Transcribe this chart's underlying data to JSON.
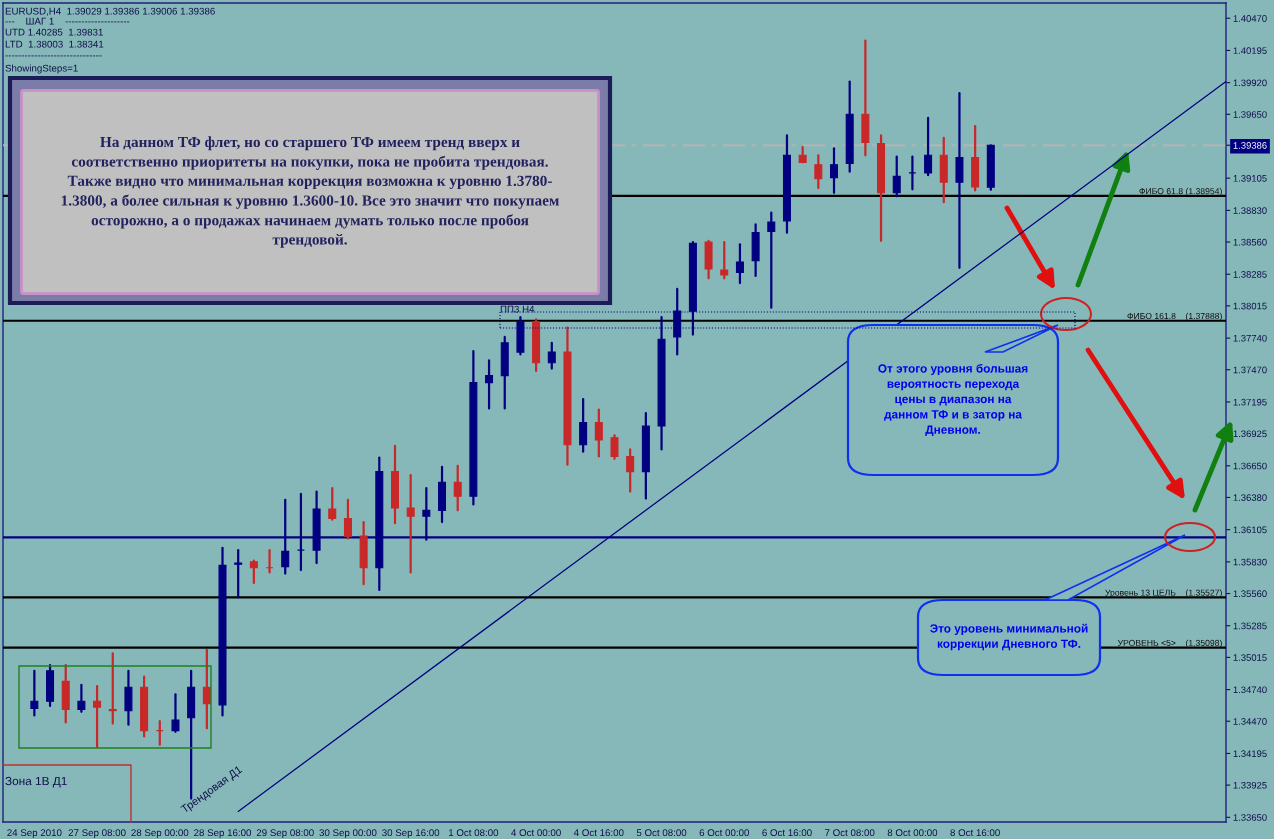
{
  "chart_data": {
    "type": "candlestick",
    "categories": [
      "24 Sep 2010",
      null,
      null,
      null,
      "27 Sep 08:00",
      null,
      null,
      null,
      "28 Sep 00:00",
      null,
      null,
      null,
      "28 Sep 16:00",
      null,
      null,
      null,
      "29 Sep 08:00",
      null,
      null,
      null,
      "30 Sep 00:00",
      null,
      null,
      null,
      "30 Sep 16:00",
      null,
      null,
      null,
      "1 Oct 08:00",
      null,
      null,
      null,
      "4 Oct 00:00",
      null,
      null,
      null,
      "4 Oct 16:00",
      null,
      null,
      null,
      "5 Oct 08:00",
      null,
      null,
      null,
      "6 Oct 00:00",
      null,
      null,
      null,
      "6 Oct 16:00",
      null,
      null,
      null,
      "7 Oct 08:00",
      null,
      null,
      null,
      "8 Oct 00:00",
      null,
      null,
      null,
      "8 Oct 16:00",
      null,
      null,
      null,
      null,
      null,
      null,
      null,
      null,
      null,
      null,
      null,
      null,
      null,
      null,
      null,
      null
    ],
    "ohlc": [
      [
        1.3458,
        1.349,
        1.3452,
        1.3464
      ],
      [
        1.3464,
        1.3495,
        1.346,
        1.349
      ],
      [
        1.3481,
        1.3495,
        1.3446,
        1.3457
      ],
      [
        1.3457,
        1.3478,
        1.3455,
        1.3464
      ],
      [
        1.3464,
        1.3477,
        1.3425,
        1.3459
      ],
      [
        1.3457,
        1.3505,
        1.3445,
        1.3456
      ],
      [
        1.3456,
        1.349,
        1.3444,
        1.3476
      ],
      [
        1.3476,
        1.3485,
        1.3434,
        1.3439
      ],
      [
        1.3439,
        1.3447,
        1.3427,
        1.3439
      ],
      [
        1.3439,
        1.347,
        1.3438,
        1.3448
      ],
      [
        1.345,
        1.349,
        1.3381,
        1.3476
      ],
      [
        1.3476,
        1.3508,
        1.3441,
        1.3462
      ],
      [
        1.3461,
        1.3595,
        1.3452,
        1.358
      ],
      [
        1.3581,
        1.3593,
        1.3553,
        1.3582
      ],
      [
        1.3583,
        1.3584,
        1.3565,
        1.3578
      ],
      [
        1.3578,
        1.3593,
        1.3574,
        1.3578
      ],
      [
        1.3579,
        1.3636,
        1.3573,
        1.3592
      ],
      [
        1.3593,
        1.3641,
        1.3576,
        1.3593
      ],
      [
        1.3593,
        1.3643,
        1.3582,
        1.3628
      ],
      [
        1.3628,
        1.3646,
        1.3619,
        1.362
      ],
      [
        1.362,
        1.3636,
        1.3603,
        1.3605
      ],
      [
        1.3605,
        1.3617,
        1.3564,
        1.3578
      ],
      [
        1.3578,
        1.3672,
        1.3559,
        1.366
      ],
      [
        1.366,
        1.3682,
        1.3616,
        1.3629
      ],
      [
        1.3629,
        1.3657,
        1.3574,
        1.3622
      ],
      [
        1.3622,
        1.3646,
        1.3602,
        1.3627
      ],
      [
        1.3627,
        1.3664,
        1.3617,
        1.3651
      ],
      [
        1.3651,
        1.3665,
        1.3627,
        1.3639
      ],
      [
        1.3639,
        1.3763,
        1.3632,
        1.3736
      ],
      [
        1.3736,
        1.3755,
        1.3714,
        1.3742
      ],
      [
        1.3742,
        1.3775,
        1.3714,
        1.377
      ],
      [
        1.3762,
        1.3792,
        1.376,
        1.3788
      ],
      [
        1.3788,
        1.379,
        1.3746,
        1.3753
      ],
      [
        1.3753,
        1.377,
        1.3748,
        1.3762
      ],
      [
        1.3762,
        1.3783,
        1.3666,
        1.3683
      ],
      [
        1.3683,
        1.3722,
        1.3677,
        1.3702
      ],
      [
        1.3702,
        1.3713,
        1.3673,
        1.3687
      ],
      [
        1.3689,
        1.3691,
        1.3671,
        1.3673
      ],
      [
        1.3673,
        1.3679,
        1.3643,
        1.366
      ],
      [
        1.366,
        1.371,
        1.3637,
        1.3699
      ],
      [
        1.3699,
        1.3792,
        1.3679,
        1.3773
      ],
      [
        1.3775,
        1.3816,
        1.376,
        1.3797
      ],
      [
        1.3797,
        1.3856,
        1.3777,
        1.3855
      ],
      [
        1.3856,
        1.3857,
        1.3825,
        1.3833
      ],
      [
        1.3832,
        1.3856,
        1.3825,
        1.3828
      ],
      [
        1.383,
        1.3854,
        1.3821,
        1.3839
      ],
      [
        1.384,
        1.3871,
        1.3827,
        1.3864
      ],
      [
        1.3865,
        1.3881,
        1.38,
        1.3873
      ],
      [
        1.3874,
        1.3947,
        1.3864,
        1.393
      ],
      [
        1.393,
        1.3937,
        1.3924,
        1.3924
      ],
      [
        1.3922,
        1.393,
        1.3902,
        1.391
      ],
      [
        1.3911,
        1.3936,
        1.3898,
        1.3922
      ],
      [
        1.3923,
        1.3993,
        1.3916,
        1.3965
      ],
      [
        1.3965,
        1.4028,
        1.393,
        1.3941
      ],
      [
        1.394,
        1.3947,
        1.3857,
        1.3898
      ],
      [
        1.3898,
        1.3929,
        1.3895,
        1.3912
      ],
      [
        1.3915,
        1.3929,
        1.3901,
        1.3915
      ],
      [
        1.3915,
        1.3962,
        1.3913,
        1.393
      ],
      [
        1.393,
        1.3945,
        1.389,
        1.3907
      ],
      [
        1.3907,
        1.3983,
        1.3834,
        1.3928
      ],
      [
        1.3928,
        1.3955,
        1.39,
        1.3903
      ],
      [
        1.39029,
        1.39386,
        1.39006,
        1.39386
      ],
      null,
      null,
      null,
      null,
      null,
      null,
      null,
      null,
      null,
      null,
      null,
      null,
      null,
      null,
      null
    ],
    "colors": [
      "#000080",
      "#000080",
      "#c82828",
      "#000080",
      "#c82828",
      "#c82828",
      "#000080",
      "#c82828",
      "#c82828",
      "#000080",
      "#000080",
      "#c82828",
      "#000080",
      "#000080",
      "#c82828",
      "#c82828",
      "#000080",
      "#000080",
      "#000080",
      "#c82828",
      "#c82828",
      "#c82828",
      "#000080",
      "#c82828",
      "#c82828",
      "#000080",
      "#000080",
      "#c82828",
      "#000080",
      "#000080",
      "#000080",
      "#000080",
      "#c82828",
      "#000080",
      "#c82828",
      "#000080",
      "#c82828",
      "#c82828",
      "#c82828",
      "#000080",
      "#000080",
      "#000080",
      "#000080",
      "#c82828",
      "#c82828",
      "#000080",
      "#000080",
      "#000080",
      "#000080",
      "#c82828",
      "#c82828",
      "#000080",
      "#000080",
      "#c82828",
      "#c82828",
      "#000080",
      "#000080",
      "#000080",
      "#c82828",
      "#000080",
      "#c82828",
      "#000080",
      null,
      null,
      null,
      null,
      null,
      null,
      null,
      null,
      null,
      null,
      null,
      null,
      null,
      null,
      null
    ],
    "series": [
      {
        "type": "line",
        "color": "#000080",
        "values": [
          null,
          null,
          null,
          null,
          null,
          null,
          null,
          null,
          null,
          null,
          null,
          null,
          null,
          1.337,
          null,
          null,
          null,
          null,
          null,
          null,
          null,
          null,
          null,
          null,
          null,
          null,
          null,
          null,
          null,
          null,
          null,
          null,
          null,
          null,
          null,
          null,
          null,
          null,
          null,
          null,
          null,
          null,
          null,
          null,
          null,
          null,
          null,
          null,
          null,
          null,
          null,
          null,
          null,
          null,
          null,
          null,
          null,
          null,
          null,
          null,
          null,
          null,
          null,
          null,
          null,
          null,
          null,
          null,
          null,
          null,
          null,
          null,
          null,
          null,
          null,
          null,
          1.3993
        ]
      }
    ],
    "ylim": [
      1.3361,
      1.406
    ],
    "yticks": [
      {
        "value": 1.4047,
        "label": "1.40470"
      },
      1.40195,
      {
        "value": 1.3992,
        "label": "1.39920"
      },
      {
        "value": 1.3965,
        "label": "1.39650"
      },
      1.39386,
      1.39105,
      {
        "value": 1.3883,
        "label": "1.38830"
      },
      {
        "value": 1.3856,
        "label": "1.38560"
      },
      1.38285,
      1.38015,
      {
        "value": 1.3774,
        "label": "1.37740"
      },
      {
        "value": 1.3747,
        "label": "1.37470"
      },
      1.37195,
      1.36925,
      {
        "value": 1.3665,
        "label": "1.36650"
      },
      {
        "value": 1.3638,
        "label": "1.36380"
      },
      1.36105,
      {
        "value": 1.3583,
        "label": "1.35830"
      },
      {
        "value": 1.3556,
        "label": "1.35560"
      },
      1.35285,
      1.35015,
      {
        "value": 1.3474,
        "label": "1.34740"
      },
      {
        "value": 1.3447,
        "label": "1.34470"
      },
      1.34195,
      1.33925,
      {
        "value": 1.3365,
        "label": "1.33650"
      }
    ],
    "grid": false,
    "ref_lines": [
      {
        "axis": "y",
        "value": 1.39386,
        "color": "#b4b4b4",
        "line_style": "dashed"
      },
      {
        "axis": "y",
        "value": 1.38954,
        "label": "ФИБО 61.8 (1.38954)",
        "color": "#000000",
        "line_style": "solid"
      },
      {
        "axis": "y",
        "value": 1.37888,
        "label": "ФИБО 161.8    (1.37888)",
        "color": "#000000",
        "line_style": "solid"
      },
      {
        "axis": "y",
        "value": 1.3604,
        "color": "#000080",
        "line_style": "solid"
      },
      {
        "axis": "y",
        "value": 1.35527,
        "label": "Уровень 13 ЦЕЛЬ    (1.35527)",
        "color": "#000000",
        "line_style": "solid"
      },
      {
        "axis": "y",
        "value": 1.35098,
        "label": "УРОВЕНЬ <5>    (1.35098)",
        "color": "#000000",
        "line_style": "solid"
      }
    ],
    "annotations": [
      "EURUSD,H4  1.39029 1.39386 1.39006 1.39386",
      "---    ШАГ 1    --------------------",
      "UTD 1.40285  1.39831",
      "LTD  1.38003  1.38341",
      "------------------------------",
      "ShowingSteps=1",
      "На данном ТФ флет, но со старшего ТФ имеем тренд вверх и\nсоответственно приоритеты на покупки, пока не пробита трендовая.\nТакже видно что минимальная коррекция возможна к уровню 1.3780-\n1.3800, а более сильная к уровню 1.3600-10. Все это значит что покупаем\nосторожно, а о продажах начинаем думать только после пробоя\nтрендовой.",
      "От этого уровня большая\nвероятность перехода\nцены в диапазон на\nданном ТФ и в затор на\nДневном.",
      "Это уровень минимальной\nкоррекции Дневного ТФ.",
      "Трендовая Д1",
      "Зона 1В Д1",
      "ПП3 Н4"
    ]
  }
}
